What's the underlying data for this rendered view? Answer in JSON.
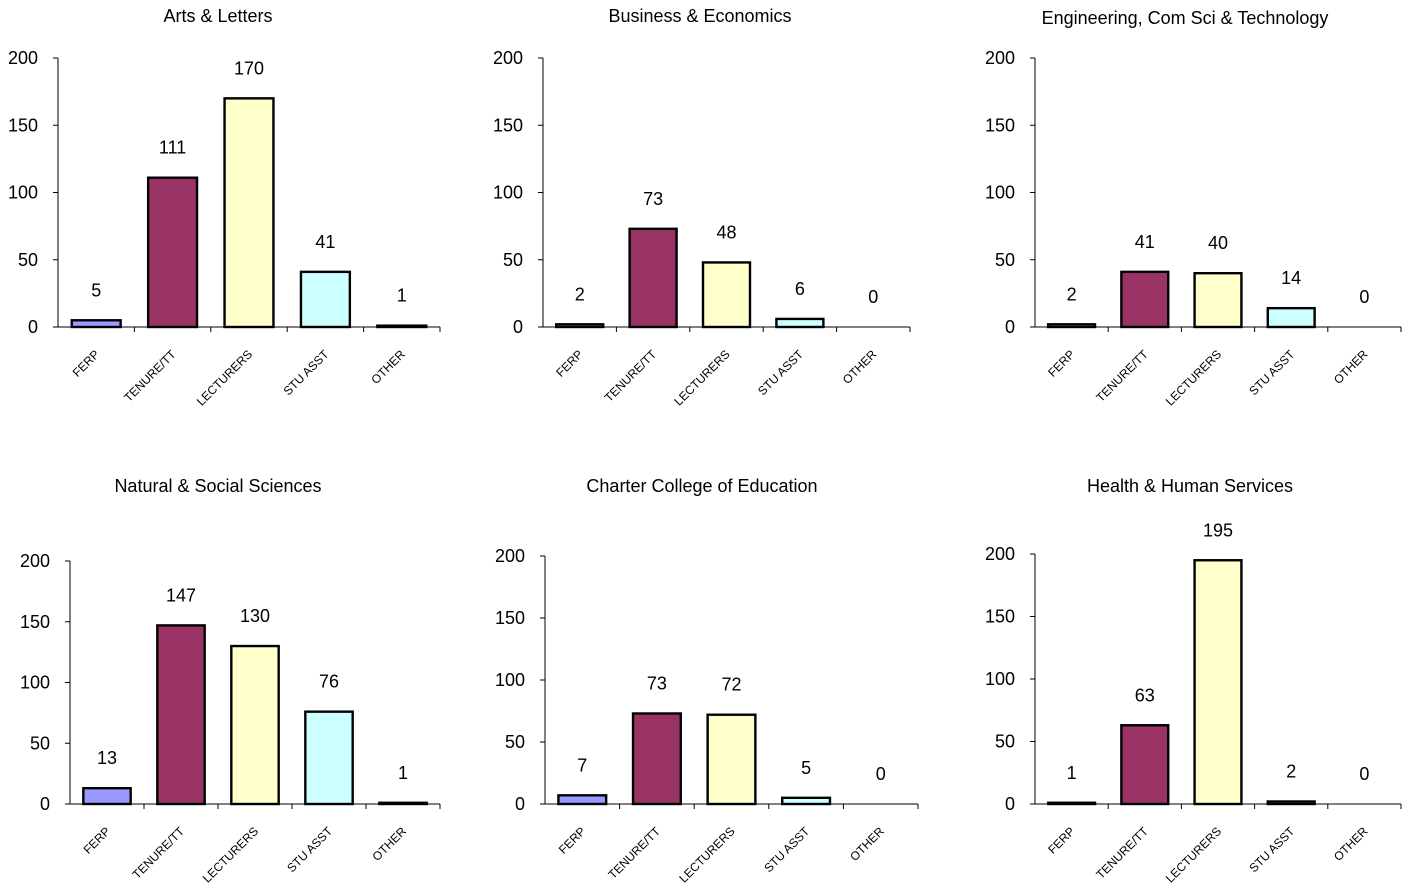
{
  "colors": [
    "#9999ff",
    "#993366",
    "#ffffcc",
    "#ccffff",
    "#ffffff"
  ],
  "chart_data": [
    {
      "type": "bar",
      "title": "Arts & Letters",
      "categories": [
        "FERP",
        "TENURE/TT",
        "LECTURERS",
        "STU ASST",
        "OTHER"
      ],
      "values": [
        5,
        111,
        170,
        41,
        1
      ],
      "ylim": [
        0,
        200
      ],
      "yticks": [
        0,
        50,
        100,
        150,
        200
      ]
    },
    {
      "type": "bar",
      "title": "Business & Economics",
      "categories": [
        "FERP",
        "TENURE/TT",
        "LECTURERS",
        "STU ASST",
        "OTHER"
      ],
      "values": [
        2,
        73,
        48,
        6,
        0
      ],
      "ylim": [
        0,
        200
      ],
      "yticks": [
        0,
        50,
        100,
        150,
        200
      ]
    },
    {
      "type": "bar",
      "title": "Engineering, Com Sci & Technology",
      "categories": [
        "FERP",
        "TENURE/TT",
        "LECTURERS",
        "STU ASST",
        "OTHER"
      ],
      "values": [
        2,
        41,
        40,
        14,
        0
      ],
      "ylim": [
        0,
        200
      ],
      "yticks": [
        0,
        50,
        100,
        150,
        200
      ]
    },
    {
      "type": "bar",
      "title": "Natural & Social Sciences",
      "categories": [
        "FERP",
        "TENURE/TT",
        "LECTURERS",
        "STU ASST",
        "OTHER"
      ],
      "values": [
        13,
        147,
        130,
        76,
        1
      ],
      "ylim": [
        0,
        200
      ],
      "yticks": [
        0,
        50,
        100,
        150,
        200
      ]
    },
    {
      "type": "bar",
      "title": "Charter College of Education",
      "categories": [
        "FERP",
        "TENURE/TT",
        "LECTURERS",
        "STU ASST",
        "OTHER"
      ],
      "values": [
        7,
        73,
        72,
        5,
        0
      ],
      "ylim": [
        0,
        200
      ],
      "yticks": [
        0,
        50,
        100,
        150,
        200
      ]
    },
    {
      "type": "bar",
      "title": "Health & Human Services",
      "categories": [
        "FERP",
        "TENURE/TT",
        "LECTURERS",
        "STU ASST",
        "OTHER"
      ],
      "values": [
        1,
        63,
        195,
        2,
        0
      ],
      "ylim": [
        0,
        200
      ],
      "yticks": [
        0,
        50,
        100,
        150,
        200
      ]
    }
  ]
}
